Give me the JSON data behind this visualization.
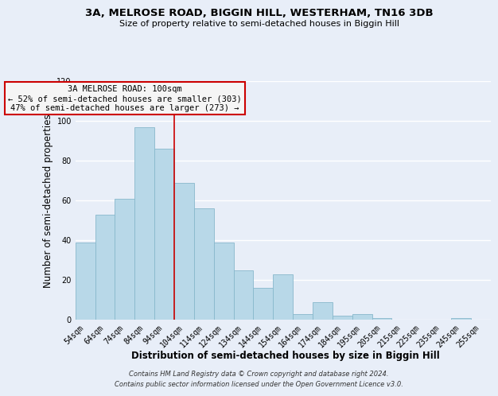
{
  "title": "3A, MELROSE ROAD, BIGGIN HILL, WESTERHAM, TN16 3DB",
  "subtitle": "Size of property relative to semi-detached houses in Biggin Hill",
  "xlabel": "Distribution of semi-detached houses by size in Biggin Hill",
  "ylabel": "Number of semi-detached properties",
  "footer_line1": "Contains HM Land Registry data © Crown copyright and database right 2024.",
  "footer_line2": "Contains public sector information licensed under the Open Government Licence v3.0.",
  "annotation_title": "3A MELROSE ROAD: 100sqm",
  "annotation_line1": "← 52% of semi-detached houses are smaller (303)",
  "annotation_line2": "47% of semi-detached houses are larger (273) →",
  "bar_labels": [
    "54sqm",
    "64sqm",
    "74sqm",
    "84sqm",
    "94sqm",
    "104sqm",
    "114sqm",
    "124sqm",
    "134sqm",
    "144sqm",
    "154sqm",
    "164sqm",
    "174sqm",
    "184sqm",
    "195sqm",
    "205sqm",
    "215sqm",
    "225sqm",
    "235sqm",
    "245sqm",
    "255sqm"
  ],
  "bar_values": [
    39,
    53,
    61,
    97,
    86,
    69,
    56,
    39,
    25,
    16,
    23,
    3,
    9,
    2,
    3,
    1,
    0,
    0,
    0,
    1,
    0
  ],
  "bar_color": "#b8d8e8",
  "bar_edge_color": "#88b8cc",
  "vline_color": "#cc0000",
  "annotation_box_color": "#f5f5f5",
  "annotation_box_edge": "#cc0000",
  "ylim": [
    0,
    120
  ],
  "yticks": [
    0,
    20,
    40,
    60,
    80,
    100,
    120
  ],
  "background_color": "#e8eef8",
  "grid_color": "#ffffff",
  "title_fontsize": 9.5,
  "subtitle_fontsize": 8,
  "axis_label_fontsize": 8.5,
  "tick_fontsize": 7,
  "annotation_fontsize": 7.5,
  "footer_fontsize": 6
}
